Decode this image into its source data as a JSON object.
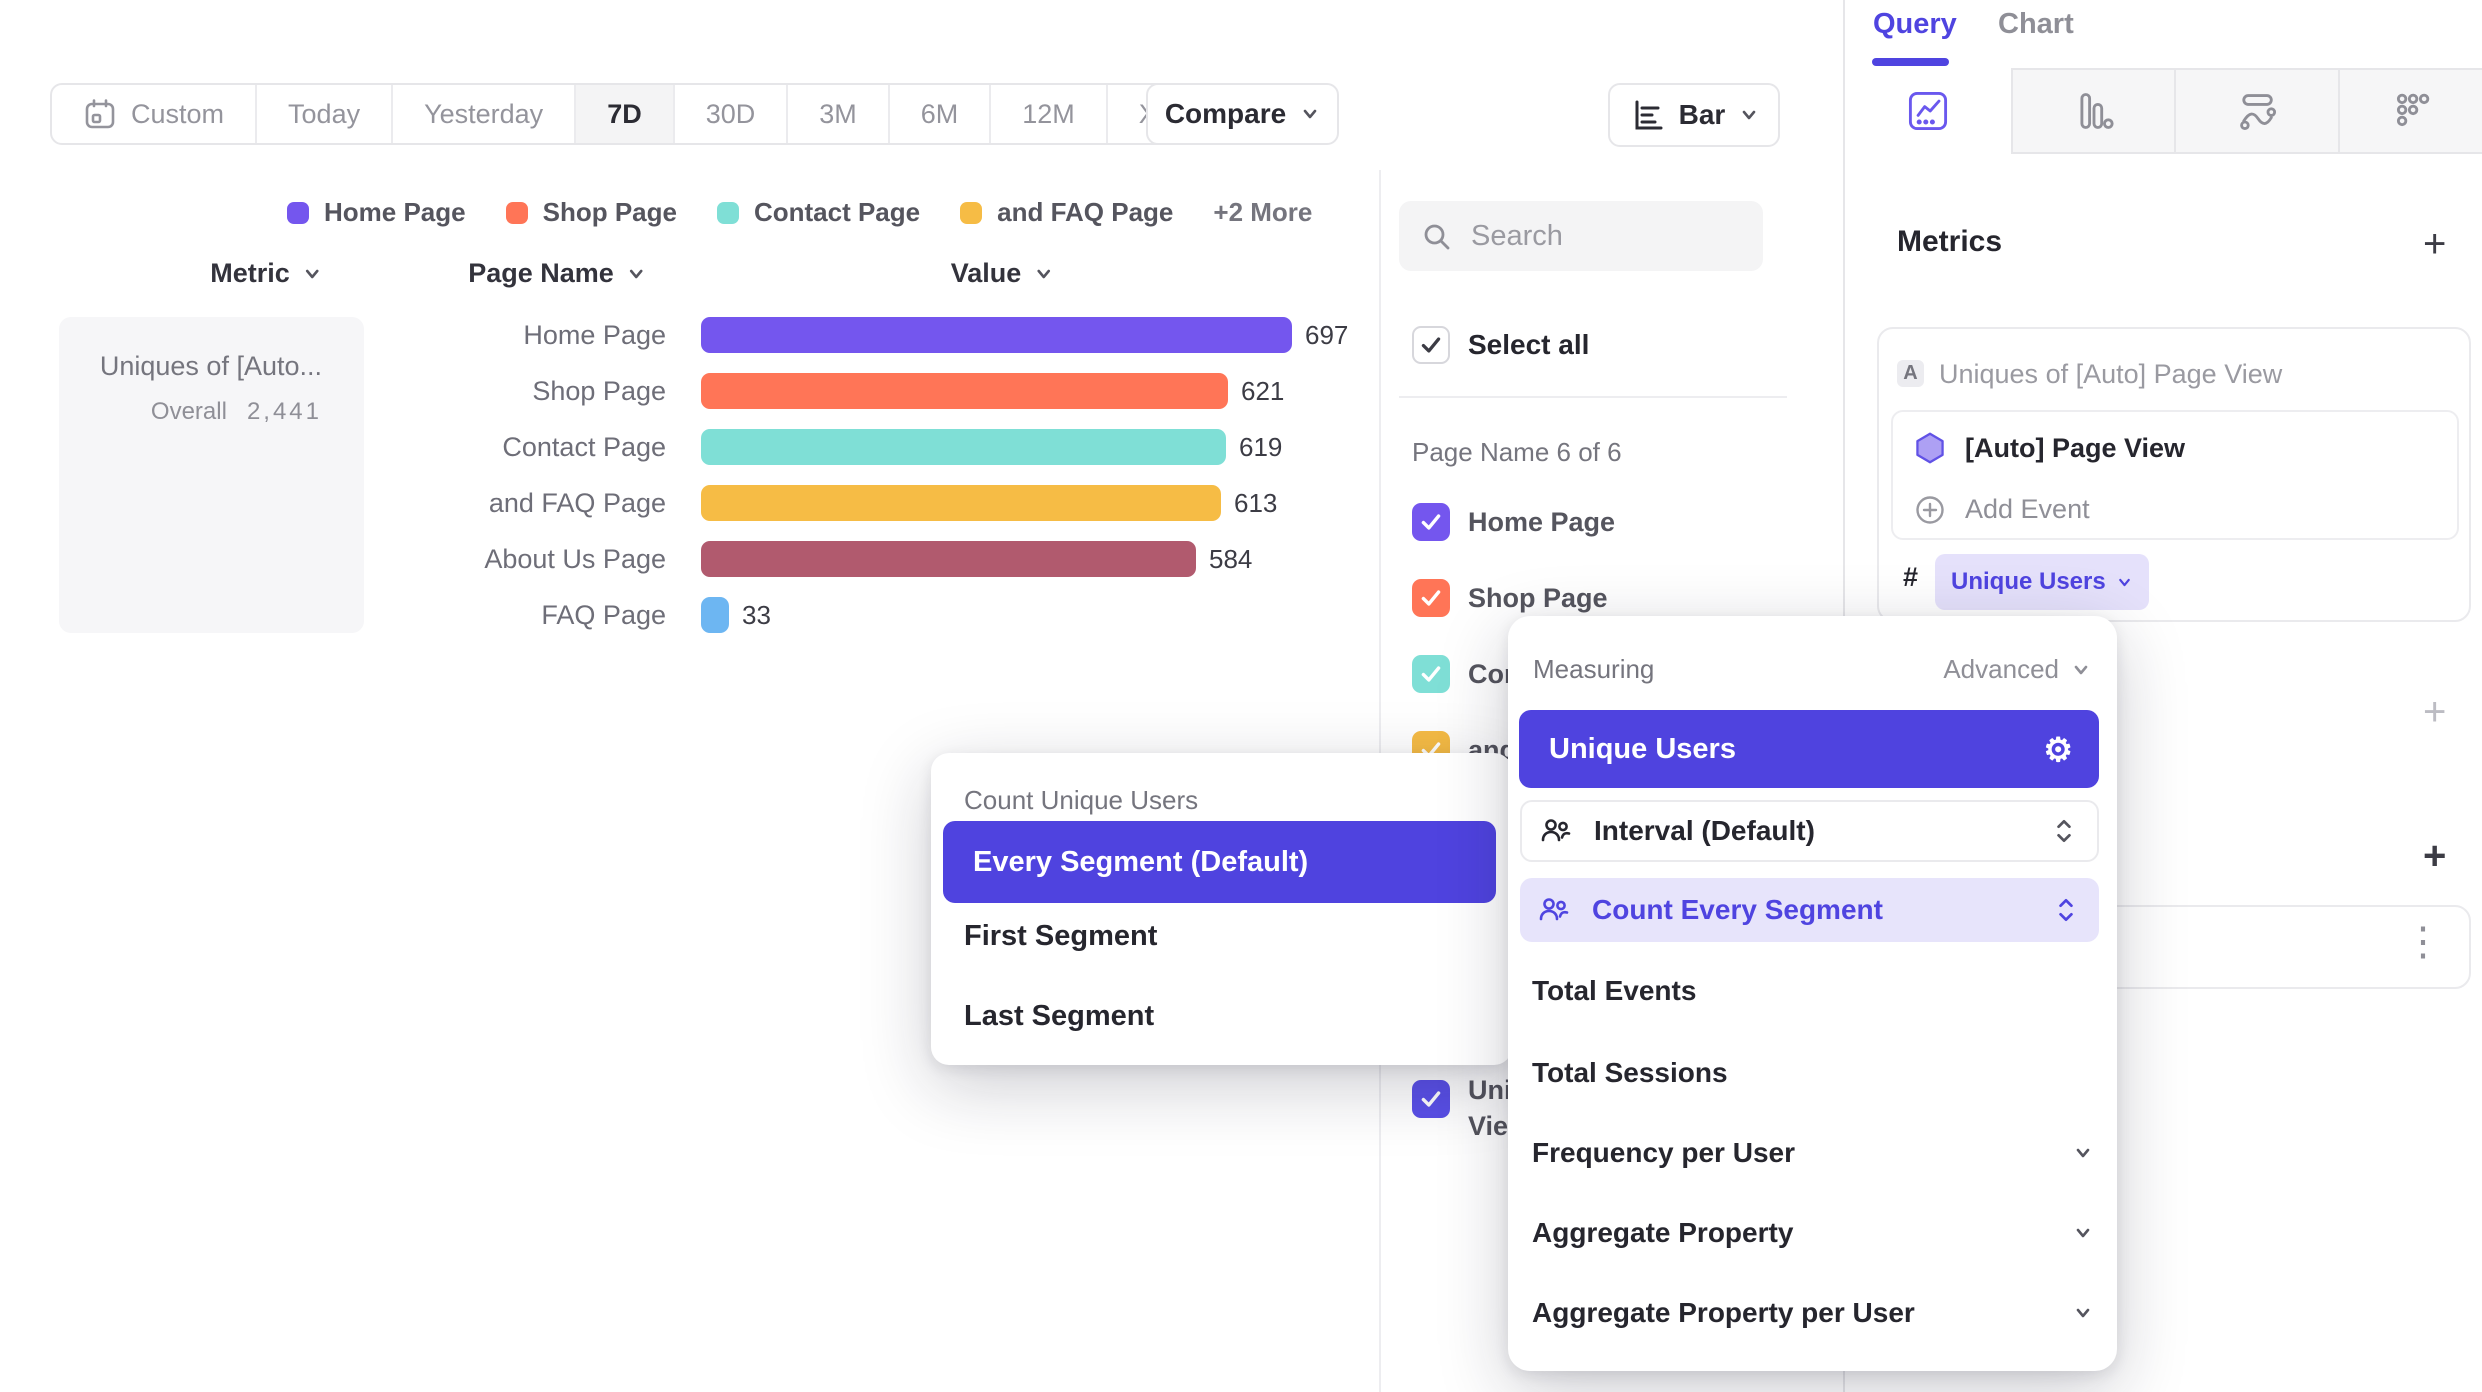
{
  "toolbar": {
    "date_ranges": [
      {
        "label": "Custom",
        "icon": "calendar-icon",
        "selected": false
      },
      {
        "label": "Today",
        "selected": false
      },
      {
        "label": "Yesterday",
        "selected": false
      },
      {
        "label": "7D",
        "selected": true
      },
      {
        "label": "30D",
        "selected": false
      },
      {
        "label": "3M",
        "selected": false
      },
      {
        "label": "6M",
        "selected": false
      },
      {
        "label": "12M",
        "selected": false
      },
      {
        "label": "XTD",
        "selected": false,
        "has_chevron": true
      }
    ],
    "compare_label": "Compare",
    "chart_type_button": {
      "label": "Bar",
      "icon": "horizontal-bar-chart-icon"
    }
  },
  "legend": {
    "items": [
      {
        "label": "Home Page",
        "color": "#7456ee"
      },
      {
        "label": "Shop Page",
        "color": "#ff7557"
      },
      {
        "label": "Contact Page",
        "color": "#7fdfd6"
      },
      {
        "label": "and FAQ Page",
        "color": "#f6bc45"
      }
    ],
    "more_label": "+2 More"
  },
  "table_headers": {
    "metric": "Metric",
    "page_name": "Page Name",
    "value": "Value"
  },
  "metric_card": {
    "title": "Uniques of [Auto...",
    "overall_label": "Overall",
    "overall_value": "2,441"
  },
  "chart_data": {
    "type": "bar",
    "orientation": "horizontal",
    "title": "Uniques of [Auto] Page View",
    "xlabel": "Value",
    "ylabel": "Page Name",
    "overall": 2441,
    "categories": [
      "Home Page",
      "Shop Page",
      "Contact Page",
      "and FAQ Page",
      "About Us Page",
      "FAQ Page"
    ],
    "values": [
      697,
      621,
      619,
      613,
      584,
      33
    ],
    "colors": [
      "#7456ee",
      "#ff7557",
      "#7fdfd6",
      "#f6bc45",
      "#b15a6e",
      "#6db6f2"
    ],
    "xlim": [
      0,
      720
    ],
    "legend_position": "top",
    "grid": false
  },
  "filter_panel": {
    "search_placeholder": "Search",
    "select_all_label": "Select all",
    "section_label": "Page Name 6 of 6",
    "items": [
      {
        "label": "Home Page",
        "color": "#7456ee",
        "checked": true
      },
      {
        "label": "Shop Page",
        "color": "#ff7557",
        "checked": true
      },
      {
        "label": "Contact Page",
        "color": "#7fdfd6",
        "checked": true
      },
      {
        "label": "and FAQ Page",
        "color": "#f6bc45",
        "checked": true
      },
      {
        "label": "About Us Page",
        "color": "#b15a6e",
        "checked": true
      },
      {
        "label": "FAQ Page",
        "color": "#6db6f2",
        "checked": true
      }
    ],
    "clipped_item": {
      "line1": "Uni",
      "line2": "Vie",
      "color": "#5a50e8",
      "checked": true
    }
  },
  "sidebar": {
    "tabs": {
      "query": "Query",
      "chart": "Chart"
    },
    "chart_type_tabs": [
      "line-chart-icon",
      "bar-columns-icon",
      "flow-icon",
      "dots-funnel-icon"
    ],
    "metrics": {
      "heading": "Metrics",
      "add_label": "+",
      "row_letter": "A",
      "row_title": "Uniques of [Auto] Page View",
      "event_name": "[Auto] Page View",
      "add_event_label": "Add Event",
      "agg_prefix": "#",
      "agg_value": "Unique Users",
      "kebab_icon": "⋮"
    }
  },
  "measuring_popup": {
    "title": "Measuring",
    "advanced_label": "Advanced",
    "selected_option": "Unique Users",
    "control_rows": [
      {
        "icon": "users-icon",
        "label": "Interval (Default)",
        "highlighted": false
      },
      {
        "icon": "users-icon",
        "label": "Count Every Segment",
        "highlighted": true
      }
    ],
    "plain_items": [
      "Total Events",
      "Total Sessions"
    ],
    "expandable_items": [
      "Frequency per User",
      "Aggregate Property",
      "Aggregate Property per User"
    ]
  },
  "count_popup": {
    "title": "Count Unique Users",
    "selected_option": "Every Segment (Default)",
    "options": [
      "First Segment",
      "Last Segment"
    ]
  },
  "colors": {
    "accent_purple": "#4f44e0",
    "selected_pill": "#4f43df",
    "pill_bg_light": "#e5e1fb",
    "row_highlight": "#e7e4fb",
    "panel_gray": "#f4f4f5",
    "border": "#e6e6e9",
    "text_dark": "#26262e",
    "text_gray": "#8f8f97"
  }
}
